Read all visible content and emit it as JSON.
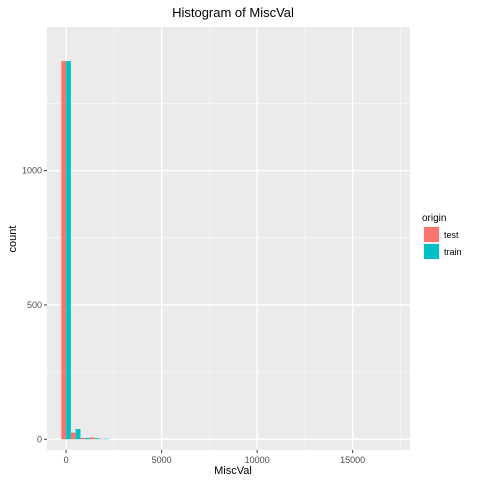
{
  "chart_data": {
    "type": "bar",
    "title": "Histogram of MiscVal",
    "xlabel": "MiscVal",
    "ylabel": "count",
    "xlim": [
      -1000,
      18000
    ],
    "ylim": [
      -40,
      1535
    ],
    "x_ticks": [
      0,
      5000,
      10000,
      15000
    ],
    "x_tick_labels": [
      "0",
      "5000",
      "10000",
      "15000"
    ],
    "y_ticks": [
      0,
      500,
      1000
    ],
    "y_tick_labels": [
      "0",
      "500",
      "1000"
    ],
    "bin_width": 500,
    "bin_centers": [
      0,
      500,
      1000,
      1500,
      2000
    ],
    "position": "dodge",
    "grid": true,
    "legend_position": "right",
    "legend_title": "origin",
    "series": [
      {
        "name": "test",
        "color": "#F8766D",
        "values": [
          1408,
          25,
          5,
          7,
          2
        ]
      },
      {
        "name": "train",
        "color": "#00BFC4",
        "values": [
          1408,
          38,
          5,
          4,
          2
        ]
      }
    ]
  }
}
